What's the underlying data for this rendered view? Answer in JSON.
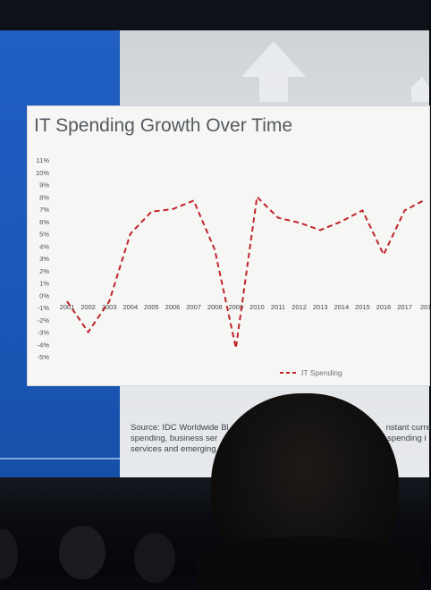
{
  "slide": {
    "title": "IT Spending Growth Over Time",
    "source_line1": "Source: IDC Worldwide Bl",
    "source_line1b": "nstant curre",
    "source_line2": "spending, business ser",
    "source_line2b": "spending i",
    "source_line3": "services and emerging"
  },
  "colors": {
    "line": "#c0242c",
    "blue_band": "#1f5fc2",
    "slide_bg": "#dfe2e6",
    "card": "#f6f6f5"
  },
  "chart_data": {
    "type": "line",
    "title": "IT Spending Growth Over Time",
    "x": [
      "2001",
      "2002",
      "2003",
      "2004",
      "2005",
      "2006",
      "2007",
      "2008",
      "2009",
      "2010",
      "2011",
      "2012",
      "2013",
      "2014",
      "2015",
      "2016",
      "2017",
      "201"
    ],
    "y_ticks": [
      "11%",
      "10%",
      "9%",
      "8%",
      "7%",
      "6%",
      "5%",
      "4%",
      "3%",
      "2%",
      "1%",
      "0%",
      "-1%",
      "-2%",
      "-3%",
      "-4%",
      "-5%"
    ],
    "ylim": [
      -5,
      11
    ],
    "series": [
      {
        "name": "IT Spending",
        "style": "dashed",
        "values": [
          -0.5,
          -3.0,
          -0.5,
          5.0,
          6.8,
          7.0,
          7.7,
          3.7,
          -4.3,
          8.0,
          6.3,
          5.9,
          5.3,
          6.0,
          6.9,
          3.3,
          6.9,
          7.8
        ]
      }
    ],
    "legend": "bottom-right",
    "grid": false
  }
}
